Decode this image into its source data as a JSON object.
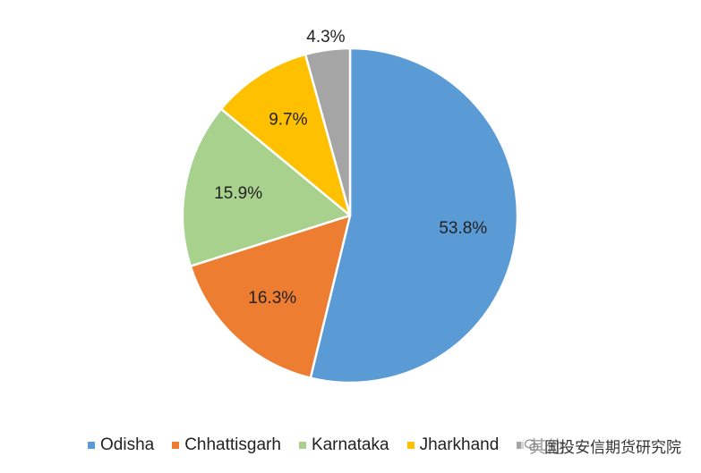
{
  "chart_data": {
    "type": "pie",
    "title": "",
    "slices": [
      {
        "label": "Odisha",
        "value": 53.8,
        "display": "53.8%",
        "color": "#5B9BD5"
      },
      {
        "label": "Chhattisgarh",
        "value": 16.3,
        "display": "16.3%",
        "color": "#ED7D31"
      },
      {
        "label": "Karnataka",
        "value": 15.9,
        "display": "15.9%",
        "color": "#A9D18E"
      },
      {
        "label": "Jharkhand",
        "value": 9.7,
        "display": "9.7%",
        "color": "#FFC000"
      },
      {
        "label": "其他",
        "value": 4.3,
        "display": "4.3%",
        "color": "#A5A5A5"
      }
    ],
    "legend_position": "bottom"
  },
  "watermark": {
    "text": "国投安信期货研究院"
  }
}
